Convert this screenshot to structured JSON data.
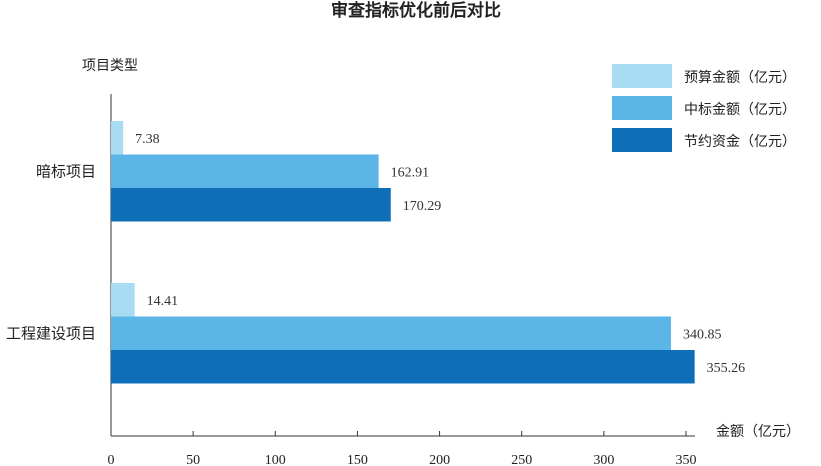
{
  "chart_data": {
    "type": "bar",
    "orientation": "horizontal",
    "title": "审查指标优化前后对比",
    "ylabel": "项目类型",
    "xlabel": "金额（亿元）",
    "categories": [
      "暗标项目",
      "工程建设项目"
    ],
    "series": [
      {
        "name": "预算金额（亿元）",
        "values": [
          7.38,
          14.41
        ],
        "color": "#a8dcf3"
      },
      {
        "name": "中标金额（亿元）",
        "values": [
          162.91,
          340.85
        ],
        "color": "#5bb5e6"
      },
      {
        "name": "节约资金（亿元）",
        "values": [
          170.29,
          355.26
        ],
        "color": "#0e6fb8"
      }
    ],
    "data_labels": [
      [
        "7.38",
        "14.41"
      ],
      [
        "162.91",
        "340.85"
      ],
      [
        "170.29",
        "355.26"
      ]
    ],
    "xlim": [
      0,
      360
    ],
    "xticks": [
      0,
      50,
      100,
      150,
      200,
      250,
      300,
      350
    ],
    "grid": false,
    "legend_position": "top-right"
  }
}
